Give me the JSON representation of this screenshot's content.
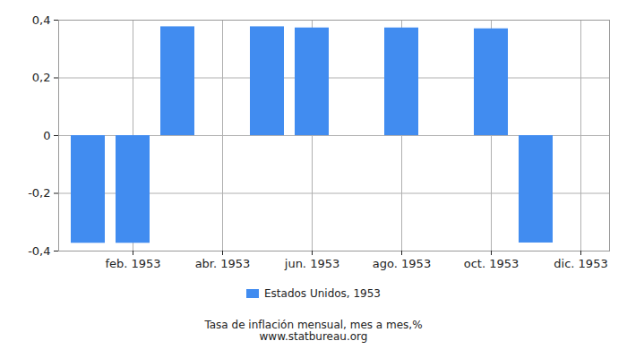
{
  "chart_data": {
    "type": "bar",
    "categories": [
      null,
      "feb. 1953",
      null,
      "abr. 1953",
      null,
      "jun. 1953",
      null,
      "ago. 1953",
      null,
      "oct. 1953",
      null,
      "dic. 1953"
    ],
    "series": [
      {
        "name": "Estados Unidos, 1953",
        "color": "#418cf0",
        "values": [
          -0.373,
          -0.373,
          0.377,
          0,
          0.377,
          0.373,
          0,
          0.373,
          0,
          0.37,
          -0.372,
          0
        ]
      }
    ],
    "ylim": [
      -0.4,
      0.4
    ],
    "yticks": [
      {
        "value": -0.4,
        "label": "-0,4"
      },
      {
        "value": -0.2,
        "label": "-0,2"
      },
      0,
      {
        "value": 0.2,
        "label": "0,2"
      },
      {
        "value": 0.4,
        "label": "0,4"
      }
    ],
    "grid": true,
    "legend": "bottom",
    "caption": "Tasa de inflación mensual, mes a mes,%",
    "source": "www.statbureau.org"
  }
}
